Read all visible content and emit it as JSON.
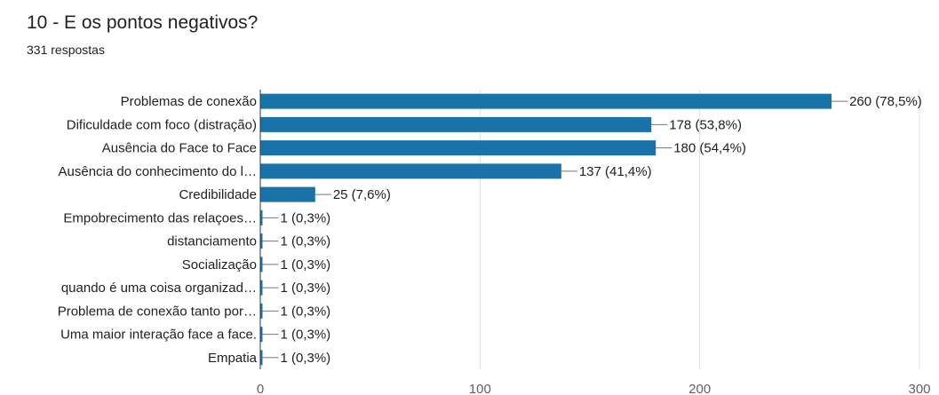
{
  "question": {
    "title": "10 - E os pontos negativos?",
    "responses": "331 respostas"
  },
  "colors": {
    "bar": "#1a73a8",
    "grid": "#e0e0e0",
    "axis": "#333333"
  },
  "chart_data": {
    "type": "bar",
    "orientation": "horizontal",
    "categories": [
      "Problemas de conexão",
      "Dificuldade com foco (distração)",
      "Ausência do Face to Face",
      "Ausência do conhecimento do l…",
      "Credibilidade",
      "Empobrecimento das relaçoes…",
      "distanciamento",
      "Socialização",
      "quando é uma coisa organizad…",
      "Problema de conexão tanto por…",
      "Uma maior interação face a face.",
      "Empatia"
    ],
    "values": [
      260,
      178,
      180,
      137,
      25,
      1,
      1,
      1,
      1,
      1,
      1,
      1
    ],
    "data_labels": [
      "260 (78,5%)",
      "178 (53,8%)",
      "180 (54,4%)",
      "137 (41,4%)",
      "25 (7,6%)",
      "1 (0,3%)",
      "1 (0,3%)",
      "1 (0,3%)",
      "1 (0,3%)",
      "1 (0,3%)",
      "1 (0,3%)",
      "1 (0,3%)"
    ],
    "xlim": [
      0,
      300
    ],
    "xticks": [
      0,
      100,
      200,
      300
    ],
    "grid": true
  }
}
